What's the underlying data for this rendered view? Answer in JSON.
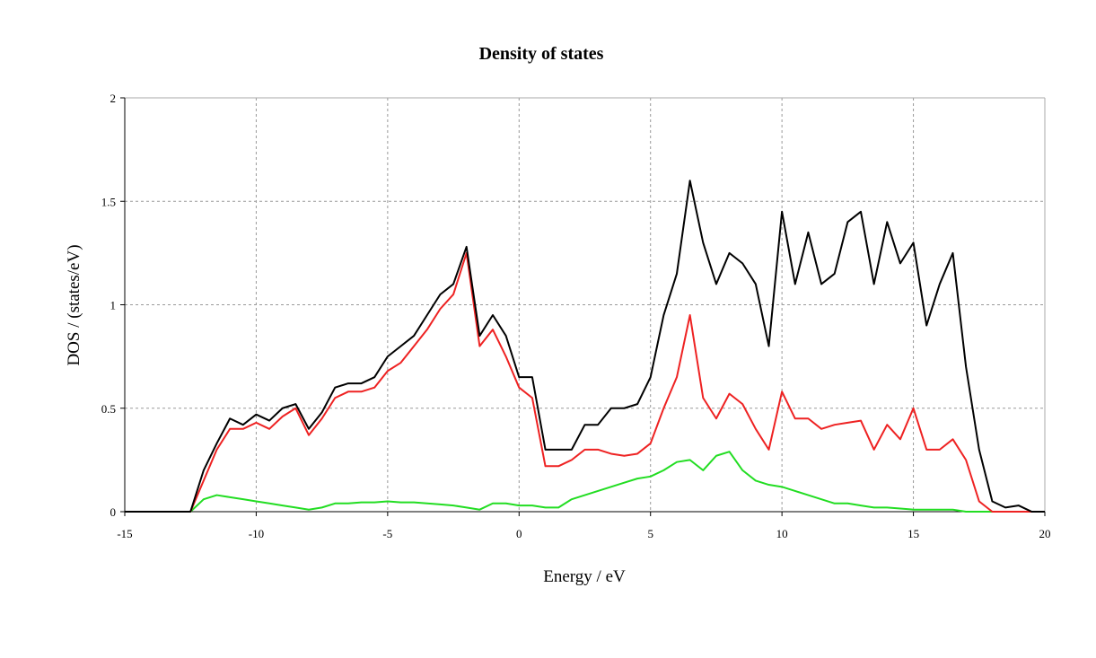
{
  "chart_data": {
    "type": "line",
    "title": "Density of states",
    "x_label": "Energy / eV",
    "y_label": "DOS / (states/eV)",
    "x": [
      -15,
      -14.5,
      -14,
      -13.5,
      -13,
      -12.5,
      -12,
      -11.5,
      -11,
      -10.5,
      -10,
      -9.5,
      -9,
      -8.5,
      -8,
      -7.5,
      -7,
      -6.5,
      -6,
      -5.5,
      -5,
      -4.5,
      -4,
      -3.5,
      -3,
      -2.5,
      -2,
      -1.5,
      -1,
      -0.5,
      0,
      0.5,
      1,
      1.5,
      2,
      2.5,
      3,
      3.5,
      4,
      4.5,
      5,
      5.5,
      6,
      6.5,
      7,
      7.5,
      8,
      8.5,
      9,
      9.5,
      10,
      10.5,
      11,
      11.5,
      12,
      12.5,
      13,
      13.5,
      14,
      14.5,
      15,
      15.5,
      16,
      16.5,
      17,
      17.5,
      18,
      18.5,
      19,
      19.5,
      20
    ],
    "series": [
      {
        "color": "#000000",
        "values": [
          0,
          0,
          0,
          0,
          0,
          0,
          0.2,
          0.33,
          0.45,
          0.42,
          0.47,
          0.44,
          0.5,
          0.52,
          0.4,
          0.48,
          0.6,
          0.62,
          0.62,
          0.65,
          0.75,
          0.8,
          0.85,
          0.95,
          1.05,
          1.1,
          1.28,
          0.85,
          0.95,
          0.85,
          0.65,
          0.65,
          0.3,
          0.3,
          0.3,
          0.42,
          0.42,
          0.5,
          0.5,
          0.52,
          0.65,
          0.95,
          1.15,
          1.6,
          1.3,
          1.1,
          1.25,
          1.2,
          1.1,
          0.8,
          1.45,
          1.1,
          1.35,
          1.1,
          1.15,
          1.4,
          1.45,
          1.1,
          1.4,
          1.2,
          1.3,
          0.9,
          1.1,
          1.25,
          0.7,
          0.3,
          0.05,
          0.02,
          0.03,
          0,
          0
        ]
      },
      {
        "color": "#ee2222",
        "values": [
          0,
          0,
          0,
          0,
          0,
          0,
          0.15,
          0.3,
          0.4,
          0.4,
          0.43,
          0.4,
          0.46,
          0.5,
          0.37,
          0.45,
          0.55,
          0.58,
          0.58,
          0.6,
          0.68,
          0.72,
          0.8,
          0.88,
          0.98,
          1.05,
          1.25,
          0.8,
          0.88,
          0.75,
          0.6,
          0.55,
          0.22,
          0.22,
          0.25,
          0.3,
          0.3,
          0.28,
          0.27,
          0.28,
          0.33,
          0.5,
          0.65,
          0.95,
          0.55,
          0.45,
          0.57,
          0.52,
          0.4,
          0.3,
          0.58,
          0.45,
          0.45,
          0.4,
          0.42,
          0.43,
          0.44,
          0.3,
          0.42,
          0.35,
          0.5,
          0.3,
          0.3,
          0.35,
          0.25,
          0.05,
          0,
          0,
          0,
          0,
          0
        ]
      },
      {
        "color": "#22dd22",
        "values": [
          0,
          0,
          0,
          0,
          0,
          0,
          0.06,
          0.08,
          0.07,
          0.06,
          0.05,
          0.04,
          0.03,
          0.02,
          0.01,
          0.02,
          0.04,
          0.04,
          0.045,
          0.045,
          0.05,
          0.045,
          0.045,
          0.04,
          0.035,
          0.03,
          0.02,
          0.01,
          0.04,
          0.04,
          0.03,
          0.03,
          0.02,
          0.02,
          0.06,
          0.08,
          0.1,
          0.12,
          0.14,
          0.16,
          0.17,
          0.2,
          0.24,
          0.25,
          0.2,
          0.27,
          0.29,
          0.2,
          0.15,
          0.13,
          0.12,
          0.1,
          0.08,
          0.06,
          0.04,
          0.04,
          0.03,
          0.02,
          0.02,
          0.015,
          0.01,
          0.01,
          0.01,
          0.01,
          0,
          0,
          0,
          0,
          0,
          0,
          0
        ]
      }
    ],
    "xlim": [
      -15,
      20
    ],
    "xticks": [
      -15,
      -10,
      -5,
      0,
      5,
      10,
      15,
      20
    ],
    "ylim": [
      0,
      2
    ],
    "yticks": [
      0,
      0.5,
      1,
      1.5,
      2
    ],
    "grid": true
  }
}
